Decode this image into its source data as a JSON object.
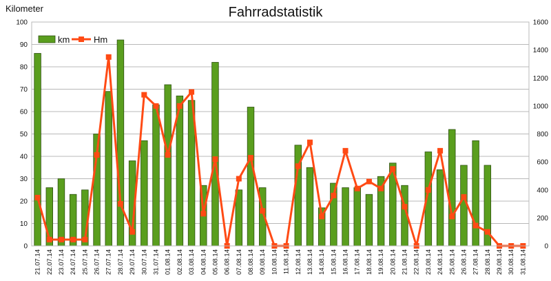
{
  "chart_data": {
    "type": "bar",
    "title": "Fahrradstatistik",
    "ylabel": "Kilometer",
    "ylabel_right": "",
    "ylim": [
      0,
      100
    ],
    "ylim_right": [
      0,
      1600
    ],
    "yticks": [
      0,
      10,
      20,
      30,
      40,
      50,
      60,
      70,
      80,
      90,
      100
    ],
    "yticks_right": [
      0,
      200,
      400,
      600,
      800,
      1000,
      1200,
      1400,
      1600
    ],
    "grid": true,
    "legend_position": "top-left",
    "categories": [
      "21.07.14",
      "22.07.14",
      "23.07.14",
      "24.07.14",
      "25.07.14",
      "26.07.14",
      "27.07.14",
      "28.07.14",
      "29.07.14",
      "30.07.14",
      "31.07.14",
      "01.08.14",
      "02.08.14",
      "03.08.14",
      "04.08.14",
      "05.08.14",
      "06.08.14",
      "07.08.14",
      "08.08.14",
      "09.08.14",
      "10.08.14",
      "11.08.14",
      "12.08.14",
      "13.08.14",
      "14.08.14",
      "15.08.14",
      "16.08.14",
      "17.08.14",
      "18.08.14",
      "19.08.14",
      "20.08.14",
      "21.08.14",
      "22.08.14",
      "23.08.14",
      "24.08.14",
      "25.08.14",
      "26.08.14",
      "27.08.14",
      "28.08.14",
      "29.08.14",
      "30.08.14",
      "31.08.14"
    ],
    "series": [
      {
        "name": "km",
        "type": "bar",
        "axis": "left",
        "color": "#5a9e1e",
        "values": [
          86,
          26,
          30,
          23,
          25,
          50,
          69,
          92,
          38,
          47,
          63,
          72,
          67,
          65,
          27,
          82,
          0,
          25,
          62,
          26,
          0,
          0,
          45,
          35,
          17,
          28,
          26,
          26,
          23,
          31,
          37,
          27,
          0,
          42,
          34,
          52,
          36,
          47,
          36,
          0,
          0,
          0
        ]
      },
      {
        "name": "Hm",
        "type": "line",
        "axis": "right",
        "color": "#ff4a14",
        "values": [
          345,
          45,
          45,
          45,
          45,
          650,
          1350,
          300,
          100,
          1080,
          1000,
          650,
          1000,
          1100,
          230,
          620,
          0,
          480,
          630,
          250,
          0,
          0,
          570,
          740,
          210,
          360,
          680,
          410,
          460,
          410,
          550,
          280,
          0,
          400,
          680,
          210,
          350,
          145,
          100,
          0,
          0,
          0
        ]
      }
    ]
  }
}
